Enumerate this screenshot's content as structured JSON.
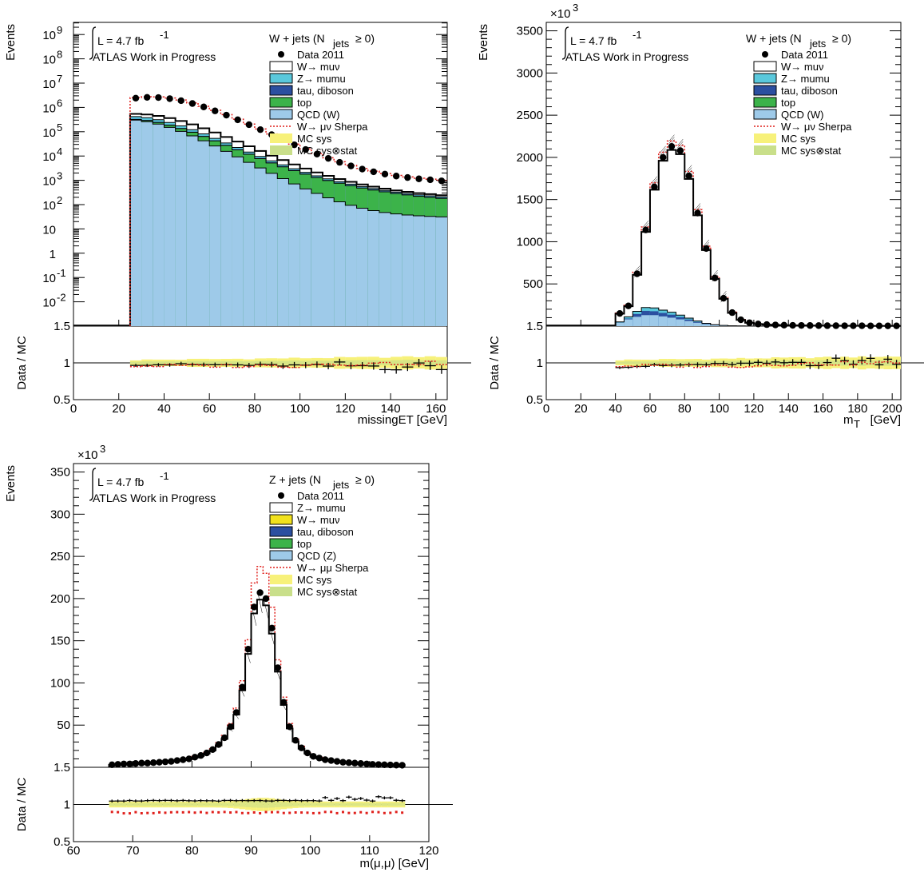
{
  "colors": {
    "wmunu": "#ffffff",
    "zmumu": "#5ac8dc",
    "tau_diboson": "#2b4fa0",
    "top": "#3cb34a",
    "qcd": "#9ecae9",
    "wjet_yellow": "#f2e21d",
    "sherpa": "#e0201c",
    "mcsys": "#f7f17a",
    "mcsysstat": "#c9df8a"
  },
  "chart_data": [
    {
      "type": "bar",
      "ylabel": "Events",
      "xlabel": "missingET [GeV]",
      "ratio_ylabel": "Data / MC",
      "lumi_label": "L = 4.7 fb",
      "lumi_exp": "-1",
      "atlas_label": "ATLAS Work in Progress",
      "channel_label": "W + jets (N",
      "channel_sub": "jets",
      "channel_tail": "≥ 0)",
      "log_y": true,
      "xlim": [
        0,
        165
      ],
      "ylim_log": [
        -3,
        9.5
      ],
      "y_tick_labels": [
        "10-2",
        "10-1",
        "1",
        "10",
        "102",
        "103",
        "104",
        "105",
        "106",
        "107",
        "108",
        "109"
      ],
      "x_ticks": [
        "0",
        "20",
        "40",
        "60",
        "80",
        "100",
        "120",
        "140",
        "160"
      ],
      "ratio_ticks": [
        "0.5",
        "1",
        "1.5"
      ],
      "legend": [
        {
          "label": "Data 2011",
          "kind": "marker"
        },
        {
          "label": "W→ muν",
          "kind": "box",
          "color": "#ffffff"
        },
        {
          "label": "Z→ mumu",
          "kind": "box",
          "color": "#5ac8dc"
        },
        {
          "label": "tau, diboson",
          "kind": "box",
          "color": "#2b4fa0"
        },
        {
          "label": "top",
          "kind": "box",
          "color": "#3cb34a"
        },
        {
          "label": "QCD (W)",
          "kind": "box",
          "color": "#9ecae9"
        },
        {
          "label": "W→ μν Sherpa",
          "kind": "dash",
          "color": "#e0201c"
        },
        {
          "label": "MC sys",
          "kind": "fill",
          "color": "#f7f17a"
        },
        {
          "label": "MC sys⊗stat",
          "kind": "fill",
          "color": "#c9df8a"
        }
      ],
      "bin_edges": [
        25,
        35,
        164
      ],
      "x": [
        27.5,
        32.5,
        37.5,
        42.5,
        47.5,
        52.5,
        57.5,
        62.5,
        67.5,
        72.5,
        77.5,
        82.5,
        87.5,
        92.5,
        97.5,
        102.5,
        107.5,
        112.5,
        117.5,
        122.5,
        127.5,
        132.5,
        137.5,
        142.5,
        147.5,
        152.5,
        157.5,
        162.5
      ],
      "series": [
        {
          "name": "Data 2011",
          "values": [
            2400000,
            2600000,
            2550000,
            2300000,
            1900000,
            1450000,
            1050000,
            720000,
            480000,
            310000,
            195000,
            122000,
            76000,
            47000,
            29000,
            18500,
            12000,
            8000,
            5500,
            3900,
            2900,
            2250,
            1800,
            1500,
            1300,
            1150,
            1050,
            950
          ]
        },
        {
          "name": "top",
          "values": [
            320000,
            290000,
            240000,
            185000,
            135000,
            95000,
            64000,
            42000,
            27500,
            18000,
            11800,
            7800,
            5200,
            3600,
            2500,
            1800,
            1300,
            980,
            760,
            600,
            480,
            400,
            335,
            285,
            250,
            220,
            200,
            180
          ]
        },
        {
          "name": "QCD (W)",
          "values": [
            300000,
            265000,
            215000,
            160000,
            112000,
            75000,
            48000,
            30000,
            18500,
            11200,
            6800,
            4100,
            2500,
            1550,
            950,
            600,
            390,
            255,
            170,
            118,
            84,
            62,
            48,
            39,
            33,
            29,
            26,
            24
          ]
        }
      ]
    },
    {
      "type": "bar",
      "ylabel": "Events",
      "xlabel": "m",
      "xlabel_sub": "T",
      "xlabel_tail": "[GeV]",
      "ratio_ylabel": "Data / MC",
      "exponent_label": "×10",
      "exponent_power": "3",
      "lumi_label": "L = 4.7 fb",
      "lumi_exp": "-1",
      "atlas_label": "ATLAS Work in Progress",
      "channel_label": "W + jets (N",
      "channel_sub": "jets",
      "channel_tail": "≥ 0)",
      "xlim": [
        0,
        205
      ],
      "ylim": [
        0,
        3600
      ],
      "y_ticks": [
        "500",
        "1000",
        "1500",
        "2000",
        "2500",
        "3000",
        "3500"
      ],
      "x_ticks": [
        "0",
        "20",
        "40",
        "60",
        "80",
        "100",
        "120",
        "140",
        "160",
        "180",
        "200"
      ],
      "ratio_ticks": [
        "0.5",
        "1",
        "1.5"
      ],
      "legend": [
        {
          "label": "Data 2011",
          "kind": "marker"
        },
        {
          "label": "W→ muν",
          "kind": "box",
          "color": "#ffffff"
        },
        {
          "label": "Z→ mumu",
          "kind": "box",
          "color": "#5ac8dc"
        },
        {
          "label": "tau, diboson",
          "kind": "box",
          "color": "#2b4fa0"
        },
        {
          "label": "top",
          "kind": "box",
          "color": "#3cb34a"
        },
        {
          "label": "QCD (W)",
          "kind": "box",
          "color": "#9ecae9"
        },
        {
          "label": "W→ μν Sherpa",
          "kind": "dash",
          "color": "#e0201c"
        },
        {
          "label": "MC sys",
          "kind": "fill",
          "color": "#f7f17a"
        },
        {
          "label": "MC sys⊗stat",
          "kind": "fill",
          "color": "#c9df8a"
        }
      ],
      "x": [
        42.5,
        47.5,
        52.5,
        57.5,
        62.5,
        67.5,
        72.5,
        77.5,
        82.5,
        87.5,
        92.5,
        97.5,
        102.5,
        107.5,
        112.5,
        117.5,
        122.5,
        127.5,
        132.5,
        137.5,
        142.5,
        147.5,
        152.5,
        157.5,
        162.5,
        167.5,
        172.5,
        177.5,
        182.5,
        187.5,
        192.5,
        197.5,
        202.5
      ],
      "series": [
        {
          "name": "Data 2011",
          "values": [
            150,
            240,
            620,
            1140,
            1650,
            2000,
            2130,
            2080,
            1780,
            1340,
            920,
            570,
            330,
            160,
            75,
            40,
            25,
            18,
            14,
            11,
            9,
            8,
            7,
            6,
            5,
            5,
            4,
            4,
            4,
            3,
            3,
            3,
            3
          ]
        },
        {
          "name": "QCD (W)",
          "values": [
            40,
            80,
            110,
            130,
            130,
            115,
            100,
            80,
            60,
            40,
            22,
            12,
            6,
            3,
            2,
            1,
            1,
            1,
            0,
            0,
            0,
            0,
            0,
            0,
            0,
            0,
            0,
            0,
            0,
            0,
            0,
            0,
            0
          ]
        },
        {
          "name": "Z→ mumu",
          "values": [
            50,
            110,
            175,
            220,
            215,
            190,
            165,
            130,
            95,
            60,
            33,
            17,
            8,
            4,
            2,
            1,
            1,
            1,
            0,
            0,
            0,
            0,
            0,
            0,
            0,
            0,
            0,
            0,
            0,
            0,
            0,
            0,
            0
          ]
        }
      ]
    },
    {
      "type": "bar",
      "ylabel": "Events",
      "xlabel": "m(μ,μ) [GeV]",
      "ratio_ylabel": "Data / MC",
      "exponent_label": "×10",
      "exponent_power": "3",
      "lumi_label": "L = 4.7 fb",
      "lumi_exp": "-1",
      "atlas_label": "ATLAS Work in Progress",
      "channel_label": "Z + jets (N",
      "channel_sub": "jets",
      "channel_tail": "≥ 0)",
      "xlim": [
        60,
        120
      ],
      "ylim": [
        0,
        360
      ],
      "y_ticks": [
        "50",
        "100",
        "150",
        "200",
        "250",
        "300",
        "350"
      ],
      "x_ticks": [
        "60",
        "70",
        "80",
        "90",
        "100",
        "110",
        "120"
      ],
      "ratio_ticks": [
        "0.5",
        "1",
        "1.5"
      ],
      "legend": [
        {
          "label": "Data 2011",
          "kind": "marker"
        },
        {
          "label": "Z→ mumu",
          "kind": "box",
          "color": "#ffffff"
        },
        {
          "label": "W→ muν",
          "kind": "box",
          "color": "#f2e21d"
        },
        {
          "label": "tau, diboson",
          "kind": "box",
          "color": "#2b4fa0"
        },
        {
          "label": "top",
          "kind": "box",
          "color": "#3cb34a"
        },
        {
          "label": "QCD (Z)",
          "kind": "box",
          "color": "#9ecae9"
        },
        {
          "label": "W→ μμ Sherpa",
          "kind": "dash",
          "color": "#e0201c"
        },
        {
          "label": "MC sys",
          "kind": "fill",
          "color": "#f7f17a"
        },
        {
          "label": "MC sys⊗stat",
          "kind": "fill",
          "color": "#c9df8a"
        }
      ],
      "x": [
        66.5,
        67.5,
        68.5,
        69.5,
        70.5,
        71.5,
        72.5,
        73.5,
        74.5,
        75.5,
        76.5,
        77.5,
        78.5,
        79.5,
        80.5,
        81.5,
        82.5,
        83.5,
        84.5,
        85.5,
        86.5,
        87.5,
        88.5,
        89.5,
        90.5,
        91.5,
        92.5,
        93.5,
        94.5,
        95.5,
        96.5,
        97.5,
        98.5,
        99.5,
        100.5,
        101.5,
        102.5,
        103.5,
        104.5,
        105.5,
        106.5,
        107.5,
        108.5,
        109.5,
        110.5,
        111.5,
        112.5,
        113.5,
        114.5,
        115.5
      ],
      "series": [
        {
          "name": "Data 2011",
          "values": [
            3,
            3.5,
            4,
            4,
            4.5,
            5,
            5,
            5.5,
            6,
            6.5,
            7,
            8,
            9,
            10,
            12,
            14,
            17,
            21,
            27,
            35,
            48,
            65,
            95,
            140,
            190,
            207,
            200,
            165,
            118,
            77,
            48,
            32,
            23,
            17,
            13,
            11,
            9,
            8,
            7,
            6,
            5.5,
            5,
            4.5,
            4,
            3.5,
            3.2,
            3,
            2.8,
            2.6,
            2.4
          ]
        }
      ]
    }
  ]
}
